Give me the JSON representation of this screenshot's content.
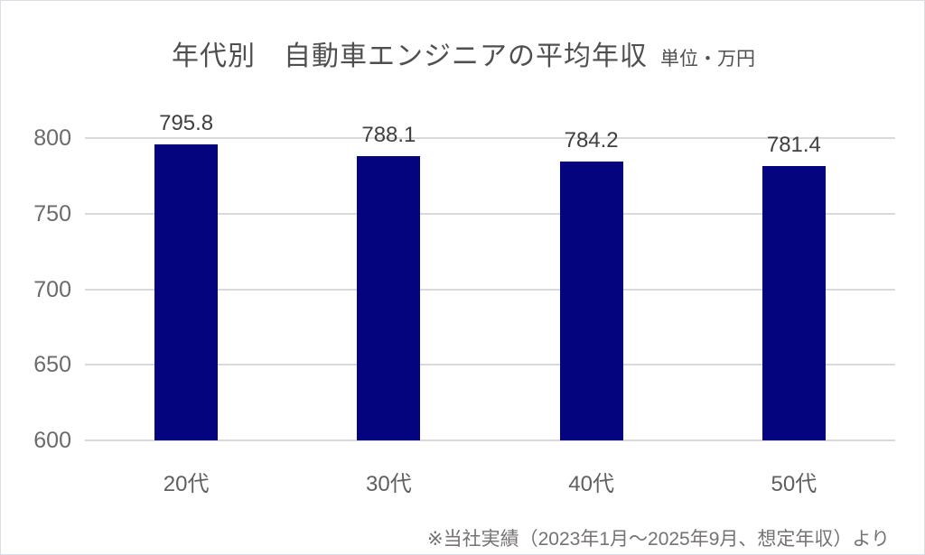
{
  "page": {
    "background_color": "#ffffff",
    "border_color": "#d8dde6"
  },
  "title": {
    "text": "年代別　自動車エンジニアの平均年収",
    "unit_label": "単位・万円"
  },
  "footnote": {
    "text": "※当社実績（2023年1月～2025年9月、想定年収）より"
  },
  "chart_data": {
    "type": "bar",
    "title": "年代別　自動車エンジニアの平均年収",
    "subtitle": "単位・万円",
    "categories": [
      "20代",
      "30代",
      "40代",
      "50代"
    ],
    "values": [
      795.8,
      788.1,
      784.2,
      781.4
    ],
    "xlabel": "",
    "ylabel": "",
    "ylim": [
      600,
      800
    ],
    "yticks": [
      800,
      750,
      700,
      650,
      600
    ],
    "grid": true,
    "legend": "none",
    "bar_color": "#04047e",
    "gridline_color": "#d9d9d9",
    "annotation": "※当社実績（2023年1月～2025年9月、想定年収）より"
  }
}
